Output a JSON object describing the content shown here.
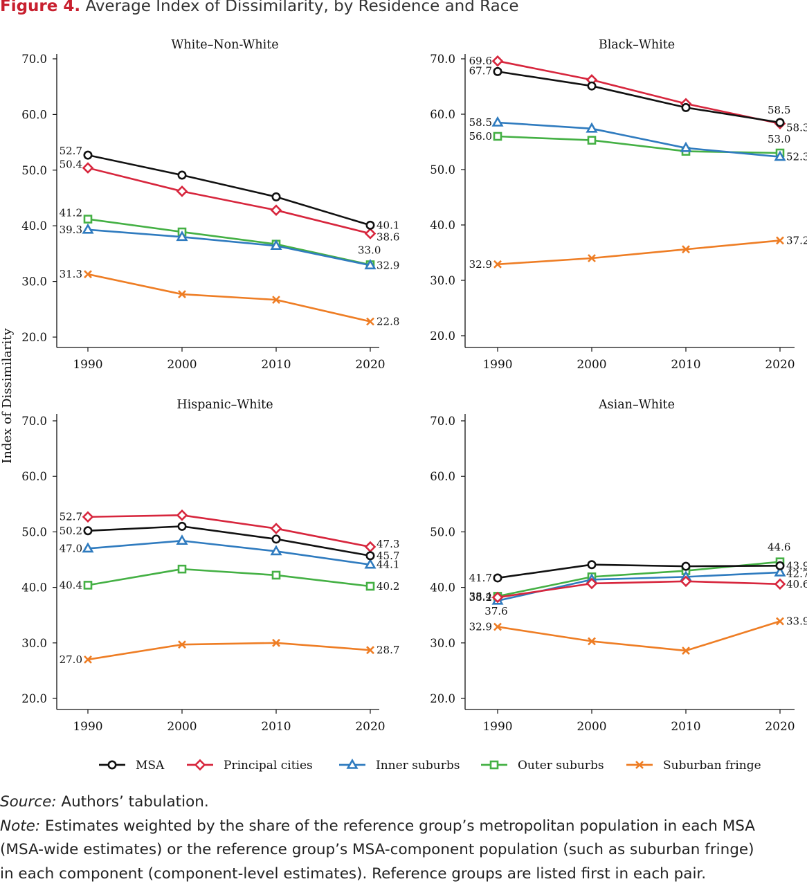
{
  "figure": {
    "label": "Figure 4.",
    "title": "Average Index of Dissimilarity, by Residence and Race"
  },
  "colors": {
    "MSA": "#111111",
    "Principal cities": "#d7263d",
    "Inner suburbs": "#2f7bbf",
    "Outer suburbs": "#44b044",
    "Suburban fringe": "#ee7d24"
  },
  "chart_data": [
    {
      "type": "line",
      "title": "White–Non-White",
      "x": [
        "1990",
        "2000",
        "2010",
        "2020"
      ],
      "ylabel": "Index of Dissimilarity",
      "ylim": [
        20,
        70
      ],
      "yticks": [
        "20.0",
        "30.0",
        "40.0",
        "50.0",
        "60.0",
        "70.0"
      ],
      "series": [
        {
          "name": "MSA",
          "marker": "circle",
          "values": [
            52.7,
            49.1,
            45.2,
            40.1
          ],
          "labels": [
            "52.7",
            "",
            "",
            "40.1"
          ]
        },
        {
          "name": "Principal cities",
          "marker": "diamond",
          "values": [
            50.4,
            46.2,
            42.8,
            38.6
          ],
          "labels": [
            "50.4",
            "",
            "",
            "38.6"
          ]
        },
        {
          "name": "Inner suburbs",
          "marker": "triangle",
          "values": [
            39.3,
            38.0,
            36.4,
            32.9
          ],
          "labels": [
            "39.3",
            "",
            "",
            "32.9"
          ]
        },
        {
          "name": "Outer suburbs",
          "marker": "square",
          "values": [
            41.2,
            38.9,
            36.7,
            33.0
          ],
          "labels": [
            "41.2",
            "",
            "",
            "33.0"
          ]
        },
        {
          "name": "Suburban fringe",
          "marker": "x",
          "values": [
            31.3,
            27.7,
            26.7,
            22.8
          ],
          "labels": [
            "31.3",
            "",
            "",
            "22.8"
          ]
        }
      ]
    },
    {
      "type": "line",
      "title": "Black–White",
      "x": [
        "1990",
        "2000",
        "2010",
        "2020"
      ],
      "ylim": [
        20,
        70
      ],
      "yticks": [
        "20.0",
        "30.0",
        "40.0",
        "50.0",
        "60.0",
        "70.0"
      ],
      "series": [
        {
          "name": "MSA",
          "marker": "circle",
          "values": [
            67.7,
            65.1,
            61.2,
            58.5
          ],
          "labels": [
            "67.7",
            "",
            "",
            "58.5"
          ]
        },
        {
          "name": "Principal cities",
          "marker": "diamond",
          "values": [
            69.6,
            66.2,
            61.9,
            58.3
          ],
          "labels": [
            "69.6",
            "",
            "",
            "58.3"
          ]
        },
        {
          "name": "Inner suburbs",
          "marker": "triangle",
          "values": [
            58.5,
            57.4,
            53.9,
            52.3
          ],
          "labels": [
            "58.5",
            "",
            "",
            "52.3"
          ]
        },
        {
          "name": "Outer suburbs",
          "marker": "square",
          "values": [
            56.0,
            55.3,
            53.3,
            53.0
          ],
          "labels": [
            "56.0",
            "",
            "",
            "53.0"
          ]
        },
        {
          "name": "Suburban fringe",
          "marker": "x",
          "values": [
            32.9,
            34.0,
            35.6,
            37.2
          ],
          "labels": [
            "32.9",
            "",
            "",
            "37.2"
          ]
        }
      ]
    },
    {
      "type": "line",
      "title": "Hispanic–White",
      "x": [
        "1990",
        "2000",
        "2010",
        "2020"
      ],
      "ylim": [
        20,
        70
      ],
      "yticks": [
        "20.0",
        "30.0",
        "40.0",
        "50.0",
        "60.0",
        "70.0"
      ],
      "series": [
        {
          "name": "MSA",
          "marker": "circle",
          "values": [
            50.2,
            51.0,
            48.7,
            45.7
          ],
          "labels": [
            "50.2",
            "",
            "",
            "45.7"
          ]
        },
        {
          "name": "Principal cities",
          "marker": "diamond",
          "values": [
            52.7,
            53.0,
            50.6,
            47.3
          ],
          "labels": [
            "52.7",
            "",
            "",
            "47.3"
          ]
        },
        {
          "name": "Inner suburbs",
          "marker": "triangle",
          "values": [
            47.0,
            48.4,
            46.5,
            44.1
          ],
          "labels": [
            "47.0",
            "",
            "",
            "44.1"
          ]
        },
        {
          "name": "Outer suburbs",
          "marker": "square",
          "values": [
            40.4,
            43.3,
            42.2,
            40.2
          ],
          "labels": [
            "40.4",
            "",
            "",
            "40.2"
          ]
        },
        {
          "name": "Suburban fringe",
          "marker": "x",
          "values": [
            27.0,
            29.7,
            30.0,
            28.7
          ],
          "labels": [
            "27.0",
            "",
            "",
            "28.7"
          ]
        }
      ]
    },
    {
      "type": "line",
      "title": "Asian–White",
      "x": [
        "1990",
        "2000",
        "2010",
        "2020"
      ],
      "ylim": [
        20,
        70
      ],
      "yticks": [
        "20.0",
        "30.0",
        "40.0",
        "50.0",
        "60.0",
        "70.0"
      ],
      "series": [
        {
          "name": "MSA",
          "marker": "circle",
          "values": [
            41.7,
            44.1,
            43.8,
            43.9
          ],
          "labels": [
            "41.7",
            "",
            "",
            "43.9"
          ]
        },
        {
          "name": "Principal cities",
          "marker": "diamond",
          "values": [
            38.2,
            40.7,
            41.1,
            40.6
          ],
          "labels": [
            "38.2",
            "",
            "",
            "40.6"
          ]
        },
        {
          "name": "Inner suburbs",
          "marker": "triangle",
          "values": [
            37.6,
            41.4,
            41.9,
            42.7
          ],
          "labels": [
            "37.6",
            "",
            "",
            "42.7"
          ]
        },
        {
          "name": "Outer suburbs",
          "marker": "square",
          "values": [
            38.4,
            41.9,
            43.0,
            44.6
          ],
          "labels": [
            "38.4",
            "",
            "",
            "44.6"
          ]
        },
        {
          "name": "Suburban fringe",
          "marker": "x",
          "values": [
            32.9,
            30.3,
            28.6,
            33.9
          ],
          "labels": [
            "32.9",
            "",
            "",
            "33.9"
          ]
        }
      ]
    }
  ],
  "legend": {
    "placement": "bottom",
    "items": [
      {
        "name": "MSA",
        "marker": "circle"
      },
      {
        "name": "Principal cities",
        "marker": "diamond"
      },
      {
        "name": "Inner suburbs",
        "marker": "triangle"
      },
      {
        "name": "Outer suburbs",
        "marker": "square"
      },
      {
        "name": "Suburban fringe",
        "marker": "x"
      }
    ]
  },
  "footnotes": {
    "source_label": "Source:",
    "source_text": " Authors’ tabulation.",
    "note_label": "Note:",
    "note_line1": " Estimates weighted by the share of the reference group’s metropolitan population in each MSA",
    "note_line2": "(MSA-wide estimates) or the reference group’s MSA-component population (such as suburban fringe)",
    "note_line3": "in each component (component-level estimates). Reference groups are listed first in each pair."
  }
}
